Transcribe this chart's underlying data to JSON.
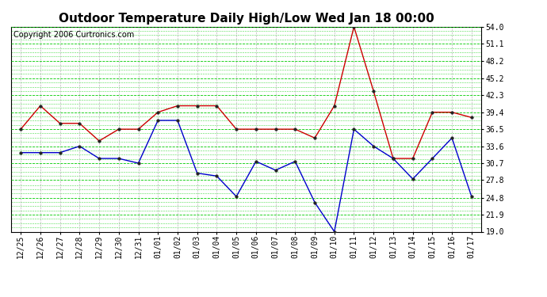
{
  "title": "Outdoor Temperature Daily High/Low Wed Jan 18 00:00",
  "copyright": "Copyright 2006 Curtronics.com",
  "labels": [
    "12/25",
    "12/26",
    "12/27",
    "12/28",
    "12/29",
    "12/30",
    "12/31",
    "01/01",
    "01/02",
    "01/03",
    "01/04",
    "01/05",
    "01/06",
    "01/07",
    "01/08",
    "01/09",
    "01/10",
    "01/11",
    "01/12",
    "01/13",
    "01/14",
    "01/15",
    "01/16",
    "01/17"
  ],
  "high_temps": [
    36.5,
    40.5,
    37.5,
    37.5,
    34.5,
    36.5,
    36.5,
    39.4,
    40.5,
    40.5,
    40.5,
    36.5,
    36.5,
    36.5,
    36.5,
    35.0,
    40.5,
    54.0,
    43.0,
    31.5,
    31.5,
    39.4,
    39.4,
    38.5
  ],
  "low_temps": [
    32.5,
    32.5,
    32.5,
    33.6,
    31.5,
    31.5,
    30.7,
    38.0,
    38.0,
    29.0,
    28.5,
    25.0,
    31.0,
    29.5,
    31.0,
    24.0,
    19.0,
    36.5,
    33.6,
    31.5,
    28.0,
    31.5,
    35.0,
    25.0
  ],
  "high_color": "#cc0000",
  "low_color": "#0000cc",
  "bg_color": "#ffffff",
  "grid_color": "#00cc00",
  "vgrid_color": "#aaaaaa",
  "yticks": [
    19.0,
    21.9,
    24.8,
    27.8,
    30.7,
    33.6,
    36.5,
    39.4,
    42.3,
    45.2,
    48.2,
    51.1,
    54.0
  ],
  "ymin": 19.0,
  "ymax": 54.0,
  "title_fontsize": 11,
  "copyright_fontsize": 7,
  "tick_fontsize": 7,
  "ytick_fontsize": 7
}
